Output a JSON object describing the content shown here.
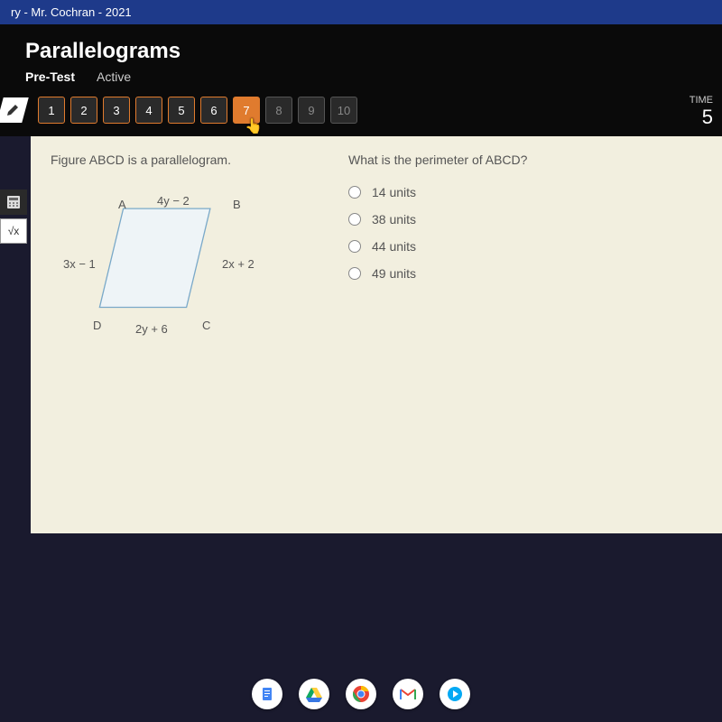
{
  "tab": {
    "title": "ry - Mr. Cochran - 2021"
  },
  "header": {
    "title": "Parallelograms",
    "subtitle": "Pre-Test",
    "mode": "Active"
  },
  "timer": {
    "label": "TIME",
    "value": "5"
  },
  "nav": {
    "buttons": [
      {
        "n": "1",
        "state": "active"
      },
      {
        "n": "2",
        "state": "active"
      },
      {
        "n": "3",
        "state": "active"
      },
      {
        "n": "4",
        "state": "active"
      },
      {
        "n": "5",
        "state": "active"
      },
      {
        "n": "6",
        "state": "active"
      },
      {
        "n": "7",
        "state": "current"
      },
      {
        "n": "8",
        "state": "disabled"
      },
      {
        "n": "9",
        "state": "disabled"
      },
      {
        "n": "10",
        "state": "disabled"
      }
    ],
    "colors": {
      "border": "#e07b2e",
      "currentBg": "#e07b2e",
      "disabledBorder": "#555"
    }
  },
  "question": {
    "prompt_left": "Figure ABCD is a parallelogram.",
    "prompt_right": "What is the perimeter of ABCD?",
    "figure": {
      "vertices": {
        "A": "A",
        "B": "B",
        "C": "C",
        "D": "D"
      },
      "edges": {
        "top": "4y − 2",
        "right": "2x + 2",
        "left": "3x − 1",
        "bottom": "2y + 6"
      },
      "stroke": "#7aa9c9",
      "fill": "#eef4f7"
    },
    "options": [
      {
        "label": "14 units"
      },
      {
        "label": "38 units"
      },
      {
        "label": "44 units"
      },
      {
        "label": "49 units"
      }
    ]
  },
  "tools": {
    "sqrt_label": "√x"
  },
  "colors": {
    "panelBg": "#f2efdf",
    "appBg": "#0a0a0a",
    "tabBg": "#1e3a8a"
  }
}
